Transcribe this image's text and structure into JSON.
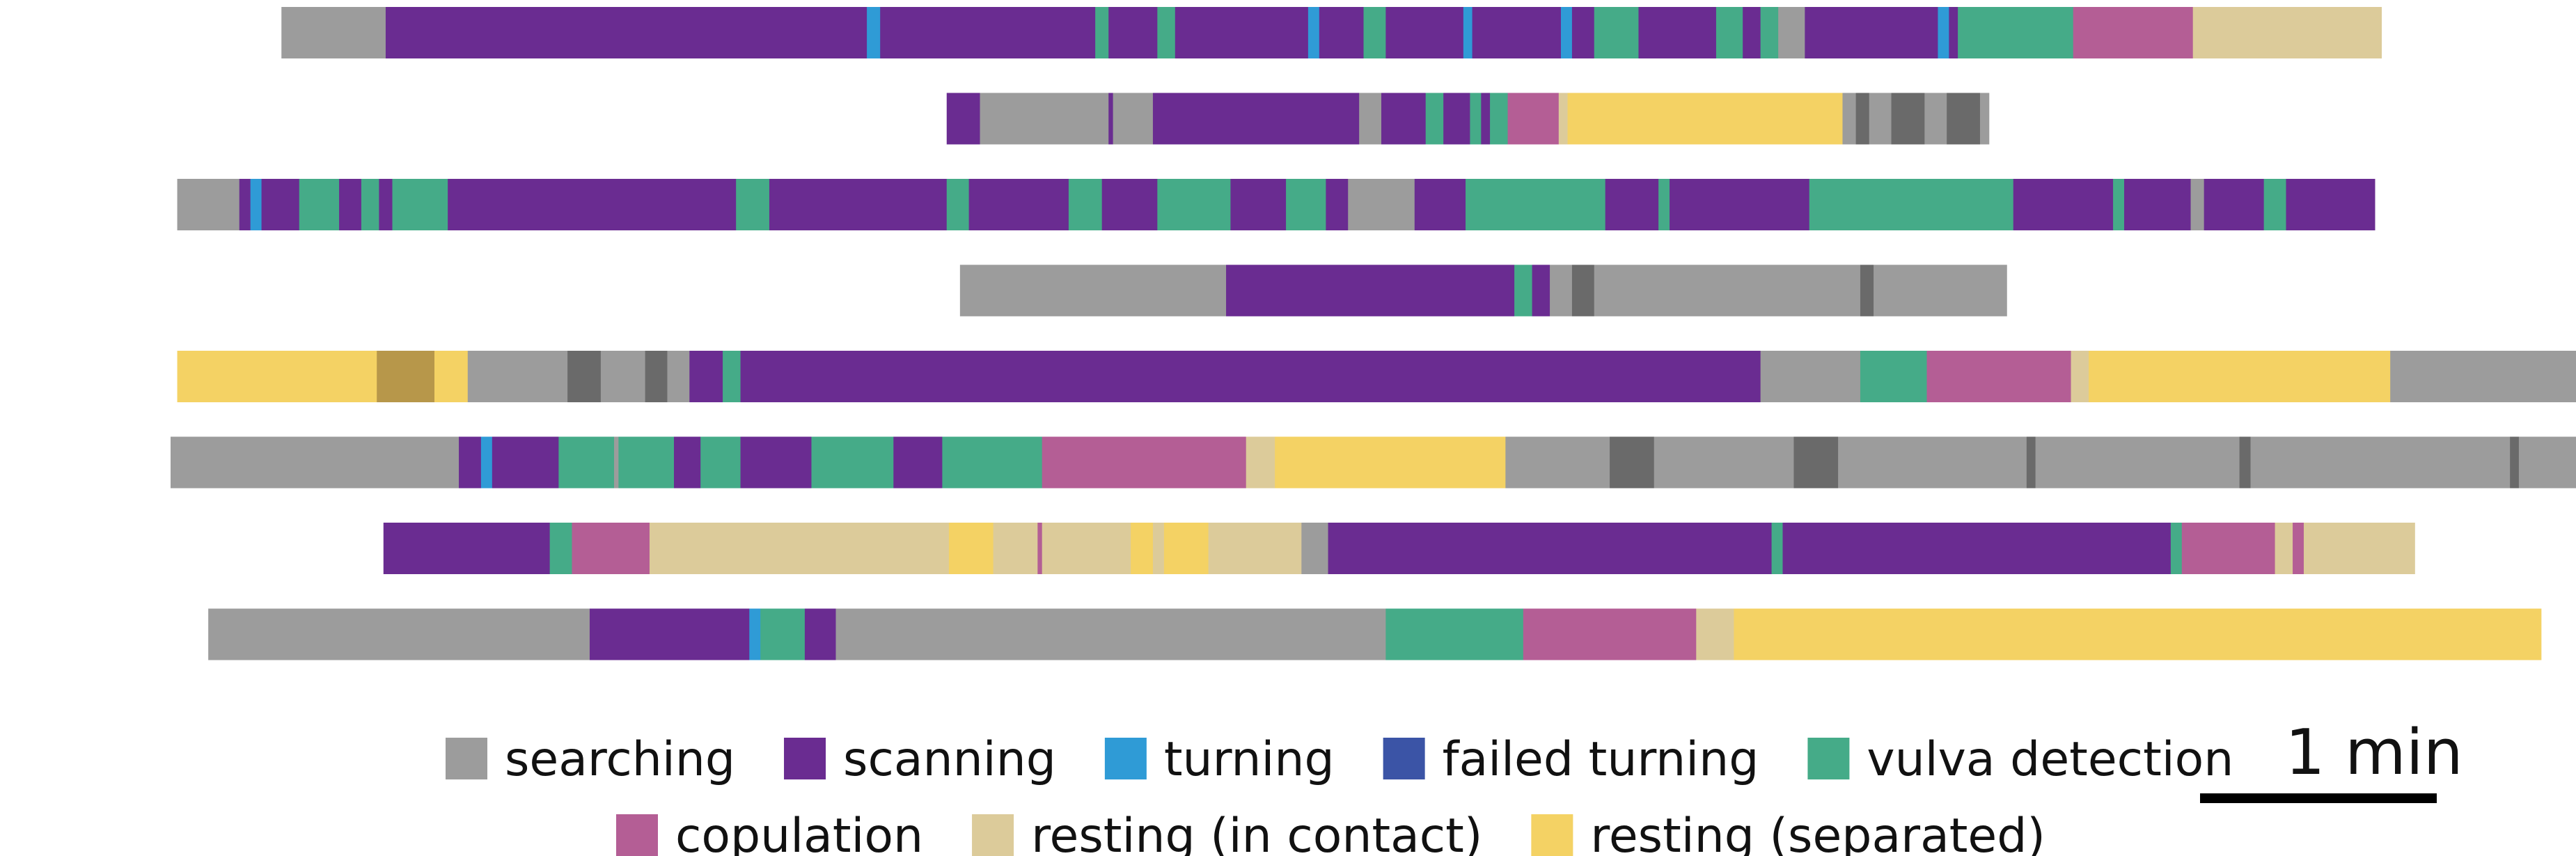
{
  "chart_data": {
    "type": "ethogram",
    "x_unit": "min",
    "xlim": [
      0,
      10.8
    ],
    "state_colors": {
      "searching": "#9c9c9c",
      "searching_dark": "#6a6a6a",
      "scanning": "#6a2c91",
      "turning": "#2f9bd6",
      "failed turning": "#3b54a6",
      "vulva detection": "#45ab88",
      "copulation": "#b45e95",
      "resting (in contact)": "#dccb9a",
      "resting (separated)": "#f4d264",
      "resting_dark": "#b7974a"
    },
    "legend": [
      {
        "label": "searching",
        "color": "#9c9c9c"
      },
      {
        "label": "scanning",
        "color": "#6a2c91"
      },
      {
        "label": "turning",
        "color": "#2f9bd6"
      },
      {
        "label": "failed turning",
        "color": "#3b54a6"
      },
      {
        "label": "vulva detection",
        "color": "#45ab88"
      },
      {
        "label": "copulation",
        "color": "#b45e95"
      },
      {
        "label": "resting (in contact)",
        "color": "#dccb9a"
      },
      {
        "label": "resting (separated)",
        "color": "#f4d264"
      }
    ],
    "scale_bar": {
      "label": "1 min",
      "minutes": 1
    },
    "tracks": [
      {
        "start": 0.5,
        "segments": [
          [
            "searching",
            0.47
          ],
          [
            "scanning",
            2.17
          ],
          [
            "turning",
            0.06
          ],
          [
            "scanning",
            0.97
          ],
          [
            "vulva detection",
            0.06
          ],
          [
            "scanning",
            0.22
          ],
          [
            "vulva detection",
            0.08
          ],
          [
            "scanning",
            0.6
          ],
          [
            "turning",
            0.05
          ],
          [
            "scanning",
            0.2
          ],
          [
            "vulva detection",
            0.1
          ],
          [
            "scanning",
            0.35
          ],
          [
            "turning",
            0.04
          ],
          [
            "scanning",
            0.4
          ],
          [
            "turning",
            0.05
          ],
          [
            "scanning",
            0.1
          ],
          [
            "vulva detection",
            0.2
          ],
          [
            "scanning",
            0.35
          ],
          [
            "vulva detection",
            0.12
          ],
          [
            "scanning",
            0.08
          ],
          [
            "vulva detection",
            0.08
          ],
          [
            "searching",
            0.12
          ],
          [
            "scanning",
            0.6
          ],
          [
            "turning",
            0.05
          ],
          [
            "scanning",
            0.04
          ],
          [
            "vulva detection",
            0.52
          ],
          [
            "copulation",
            0.54
          ],
          [
            "resting (in contact)",
            0.85
          ]
        ]
      },
      {
        "start": 3.5,
        "segments": [
          [
            "scanning",
            0.15
          ],
          [
            "searching",
            0.58
          ],
          [
            "scanning",
            0.02
          ],
          [
            "searching",
            0.18
          ],
          [
            "scanning",
            0.93
          ],
          [
            "searching",
            0.1
          ],
          [
            "scanning",
            0.2
          ],
          [
            "vulva detection",
            0.08
          ],
          [
            "scanning",
            0.12
          ],
          [
            "vulva detection",
            0.05
          ],
          [
            "scanning",
            0.04
          ],
          [
            "vulva detection",
            0.08
          ],
          [
            "copulation",
            0.23
          ],
          [
            "resting (in contact)",
            0.04
          ],
          [
            "resting (separated)",
            1.24
          ],
          [
            "searching",
            0.06
          ],
          [
            "searching_dark",
            0.06
          ],
          [
            "searching",
            0.1
          ],
          [
            "searching_dark",
            0.15
          ],
          [
            "searching",
            0.1
          ],
          [
            "searching_dark",
            0.15
          ],
          [
            "searching",
            0.04
          ]
        ]
      },
      {
        "start": 0.03,
        "segments": [
          [
            "searching",
            0.28
          ],
          [
            "scanning",
            0.05
          ],
          [
            "turning",
            0.05
          ],
          [
            "scanning",
            0.17
          ],
          [
            "vulva detection",
            0.18
          ],
          [
            "scanning",
            0.1
          ],
          [
            "vulva detection",
            0.08
          ],
          [
            "scanning",
            0.06
          ],
          [
            "vulva detection",
            0.25
          ],
          [
            "scanning",
            1.3
          ],
          [
            "vulva detection",
            0.15
          ],
          [
            "scanning",
            0.8
          ],
          [
            "vulva detection",
            0.1
          ],
          [
            "scanning",
            0.45
          ],
          [
            "vulva detection",
            0.15
          ],
          [
            "scanning",
            0.25
          ],
          [
            "vulva detection",
            0.33
          ],
          [
            "scanning",
            0.25
          ],
          [
            "vulva detection",
            0.18
          ],
          [
            "scanning",
            0.1
          ],
          [
            "searching",
            0.3
          ],
          [
            "scanning",
            0.23
          ],
          [
            "vulva detection",
            0.63
          ],
          [
            "scanning",
            0.24
          ],
          [
            "vulva detection",
            0.05
          ],
          [
            "scanning",
            0.63
          ],
          [
            "vulva detection",
            0.92
          ],
          [
            "scanning",
            0.45
          ],
          [
            "vulva detection",
            0.05
          ],
          [
            "scanning",
            0.3
          ],
          [
            "searching",
            0.06
          ],
          [
            "scanning",
            0.27
          ],
          [
            "vulva detection",
            0.1
          ],
          [
            "scanning",
            0.4
          ]
        ]
      },
      {
        "start": 3.56,
        "segments": [
          [
            "searching",
            1.2
          ],
          [
            "scanning",
            1.3
          ],
          [
            "vulva detection",
            0.08
          ],
          [
            "scanning",
            0.08
          ],
          [
            "searching",
            0.1
          ],
          [
            "searching_dark",
            0.1
          ],
          [
            "searching",
            1.2
          ],
          [
            "searching_dark",
            0.06
          ],
          [
            "searching",
            0.6
          ]
        ]
      },
      {
        "start": 0.03,
        "segments": [
          [
            "resting (separated)",
            0.9
          ],
          [
            "resting_dark",
            0.26
          ],
          [
            "resting (separated)",
            0.15
          ],
          [
            "searching",
            0.45
          ],
          [
            "searching_dark",
            0.15
          ],
          [
            "searching",
            0.2
          ],
          [
            "searching_dark",
            0.1
          ],
          [
            "searching",
            0.1
          ],
          [
            "scanning",
            0.15
          ],
          [
            "vulva detection",
            0.08
          ],
          [
            "scanning",
            4.6
          ],
          [
            "searching",
            0.45
          ],
          [
            "vulva detection",
            0.3
          ],
          [
            "copulation",
            0.65
          ],
          [
            "resting (in contact)",
            0.08
          ],
          [
            "resting (separated)",
            1.36
          ],
          [
            "searching",
            0.89
          ]
        ]
      },
      {
        "start": 0.0,
        "segments": [
          [
            "searching",
            1.3
          ],
          [
            "scanning",
            0.1
          ],
          [
            "turning",
            0.05
          ],
          [
            "scanning",
            0.3
          ],
          [
            "vulva detection",
            0.25
          ],
          [
            "searching",
            0.02
          ],
          [
            "vulva detection",
            0.25
          ],
          [
            "scanning",
            0.12
          ],
          [
            "vulva detection",
            0.18
          ],
          [
            "scanning",
            0.32
          ],
          [
            "vulva detection",
            0.37
          ],
          [
            "scanning",
            0.22
          ],
          [
            "vulva detection",
            0.45
          ],
          [
            "copulation",
            0.92
          ],
          [
            "resting (in contact)",
            0.13
          ],
          [
            "resting (separated)",
            1.04
          ],
          [
            "searching",
            0.47
          ],
          [
            "searching_dark",
            0.2
          ],
          [
            "searching",
            0.63
          ],
          [
            "searching_dark",
            0.2
          ],
          [
            "searching",
            0.85
          ],
          [
            "searching_dark",
            0.04
          ],
          [
            "searching",
            0.92
          ],
          [
            "searching_dark",
            0.05
          ],
          [
            "searching",
            1.17
          ],
          [
            "searching_dark",
            0.04
          ],
          [
            "searching",
            0.35
          ]
        ]
      },
      {
        "start": 0.96,
        "segments": [
          [
            "scanning",
            0.75
          ],
          [
            "vulva detection",
            0.1
          ],
          [
            "copulation",
            0.35
          ],
          [
            "resting (in contact)",
            1.35
          ],
          [
            "resting (separated)",
            0.2
          ],
          [
            "resting (in contact)",
            0.2
          ],
          [
            "copulation",
            0.02
          ],
          [
            "resting (in contact)",
            0.4
          ],
          [
            "resting (separated)",
            0.1
          ],
          [
            "resting (in contact)",
            0.05
          ],
          [
            "resting (separated)",
            0.2
          ],
          [
            "resting (in contact)",
            0.42
          ],
          [
            "searching",
            0.12
          ],
          [
            "scanning",
            2.0
          ],
          [
            "vulva detection",
            0.05
          ],
          [
            "scanning",
            1.75
          ],
          [
            "vulva detection",
            0.05
          ],
          [
            "copulation",
            0.42
          ],
          [
            "resting (in contact)",
            0.08
          ],
          [
            "copulation",
            0.05
          ],
          [
            "resting (in contact)",
            0.5
          ]
        ]
      },
      {
        "start": 0.17,
        "segments": [
          [
            "searching",
            1.72
          ],
          [
            "scanning",
            0.72
          ],
          [
            "turning",
            0.05
          ],
          [
            "vulva detection",
            0.2
          ],
          [
            "scanning",
            0.14
          ],
          [
            "searching",
            2.48
          ],
          [
            "vulva detection",
            0.62
          ],
          [
            "copulation",
            0.78
          ],
          [
            "resting (in contact)",
            0.17
          ],
          [
            "resting (separated)",
            3.64
          ]
        ]
      }
    ]
  }
}
